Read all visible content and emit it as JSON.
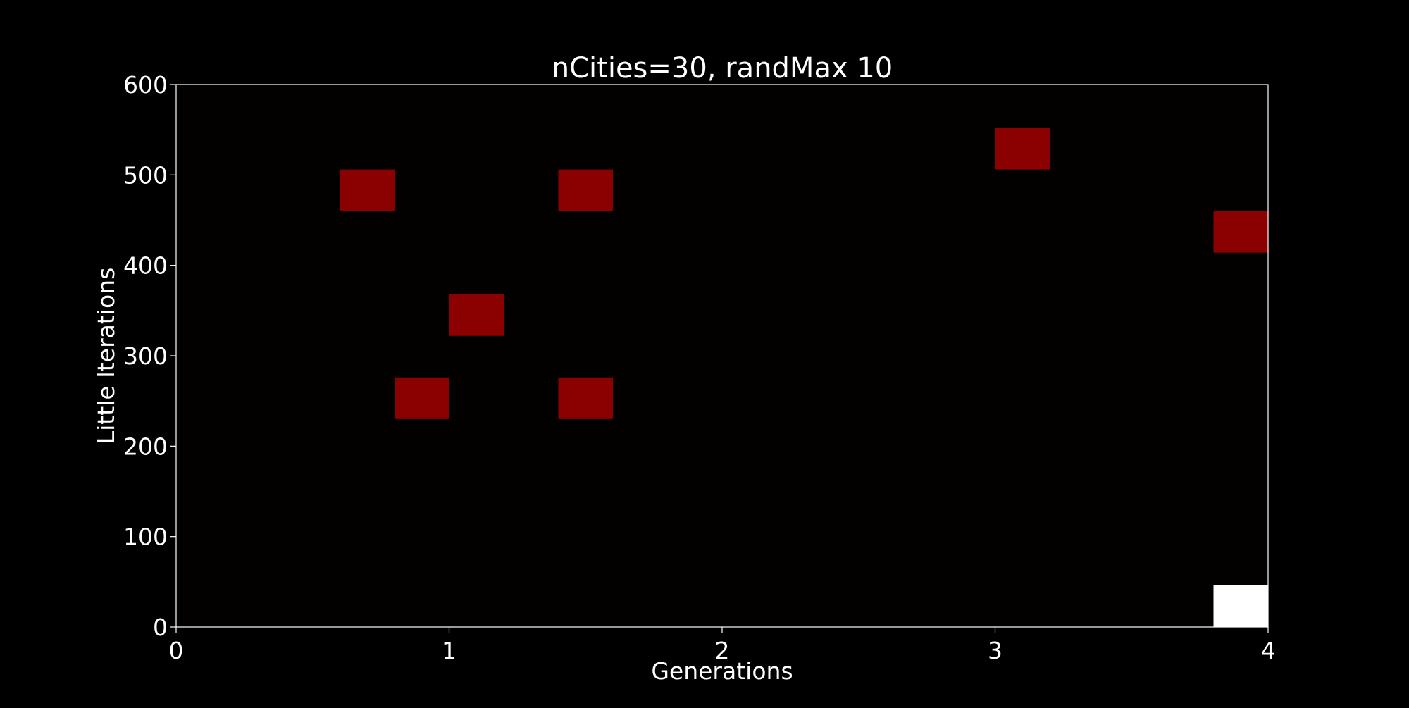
{
  "chart_data": {
    "type": "heatmap",
    "title": "nCities=30, randMax 10",
    "xlabel": "Generations",
    "ylabel": "Little Iterations",
    "xlim": [
      0,
      4
    ],
    "ylim": [
      0,
      600
    ],
    "x_ticks": [
      "0",
      "1",
      "2",
      "3",
      "4"
    ],
    "y_ticks": [
      "0",
      "100",
      "200",
      "300",
      "400",
      "500",
      "600"
    ],
    "x_tick_values": [
      0,
      1,
      2,
      3,
      4
    ],
    "y_tick_values": [
      0,
      100,
      200,
      300,
      400,
      500,
      600
    ],
    "cell_width": 0.2,
    "cell_height": 46,
    "background_color": "#030000",
    "grid": false,
    "legend": "none",
    "cells": [
      {
        "x": 0.6,
        "y": 460,
        "color": "#8b0000"
      },
      {
        "x": 1.4,
        "y": 460,
        "color": "#8b0000"
      },
      {
        "x": 3.0,
        "y": 506,
        "color": "#8b0000"
      },
      {
        "x": 3.8,
        "y": 414,
        "color": "#8b0000"
      },
      {
        "x": 1.0,
        "y": 322,
        "color": "#8b0000"
      },
      {
        "x": 0.8,
        "y": 230,
        "color": "#8b0000"
      },
      {
        "x": 1.4,
        "y": 230,
        "color": "#8b0000"
      },
      {
        "x": 3.8,
        "y": 0,
        "color": "#ffffff"
      }
    ]
  }
}
